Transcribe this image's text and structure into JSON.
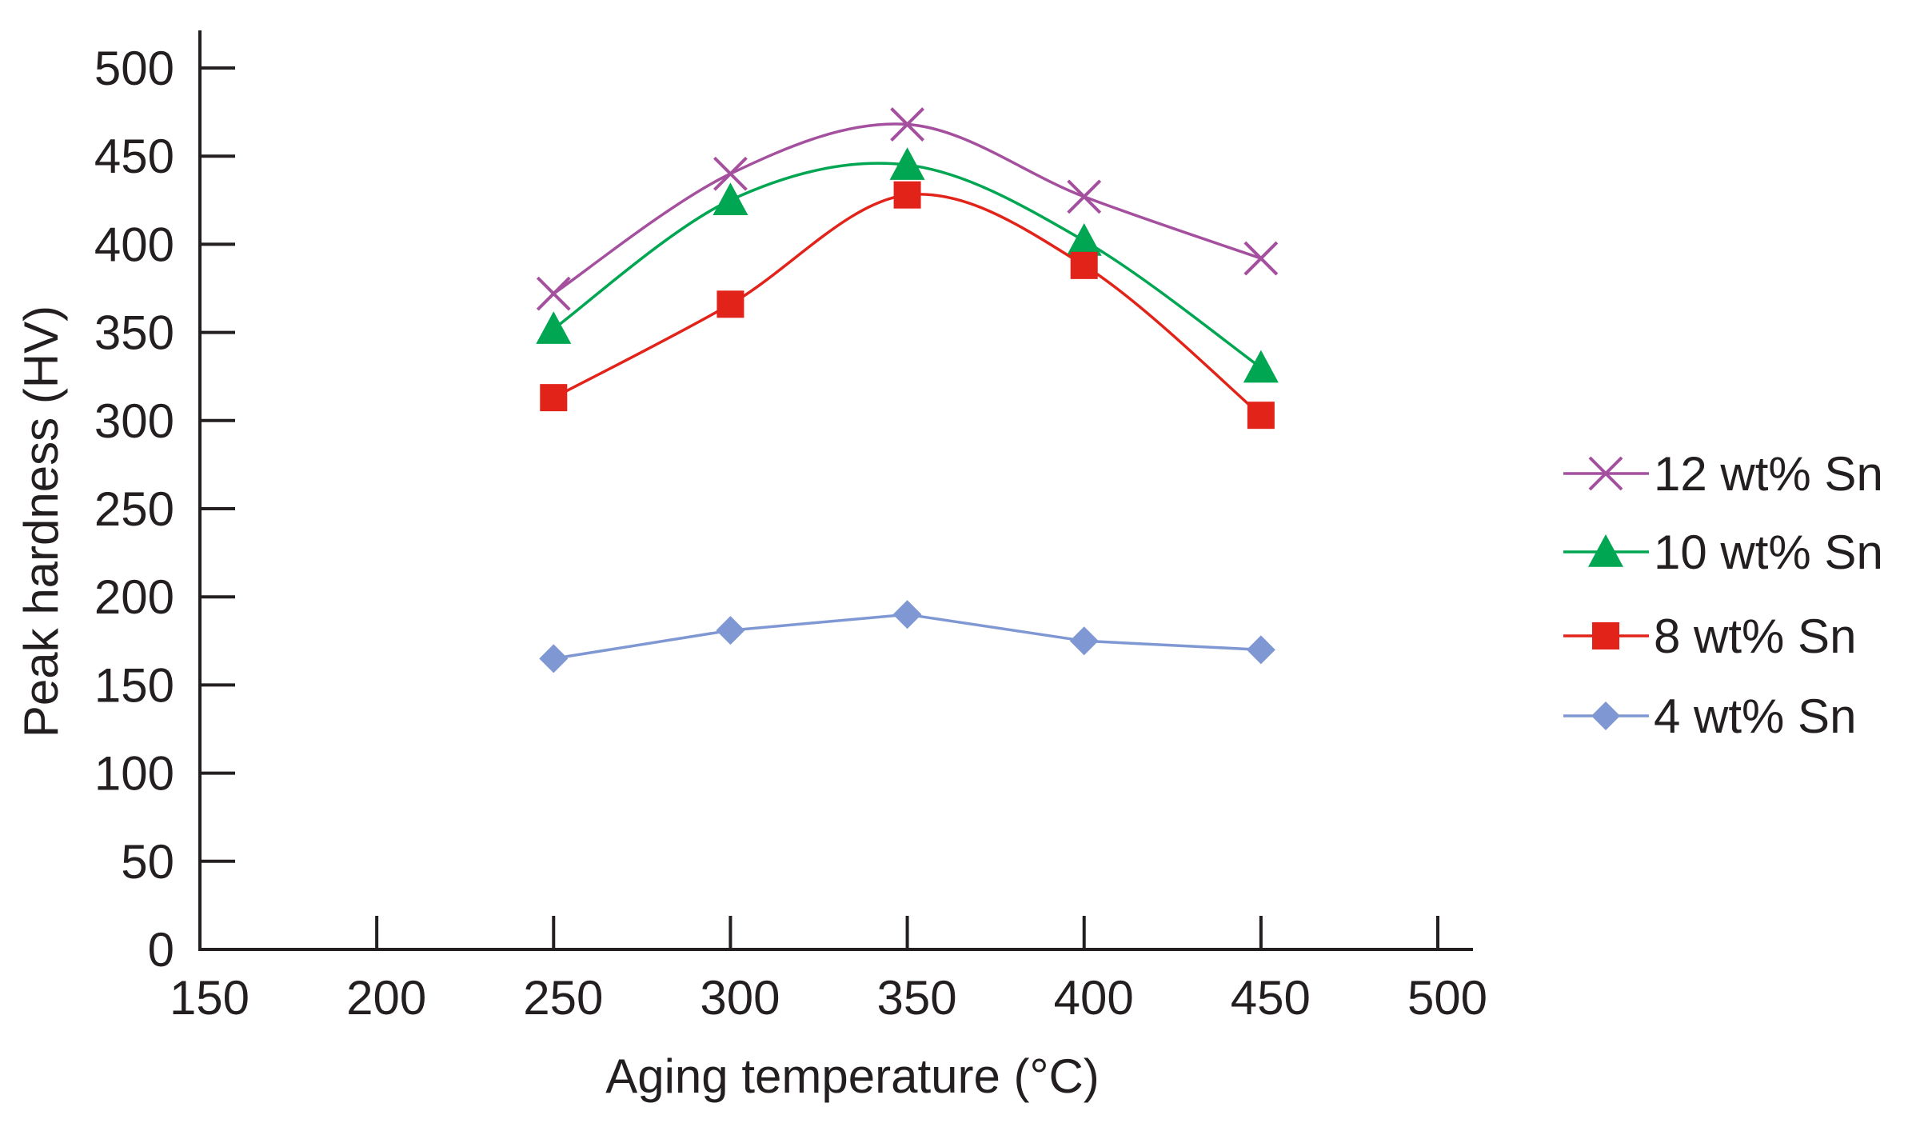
{
  "chart_data": {
    "type": "line",
    "title": "",
    "xlabel": "Aging temperature (°C)",
    "ylabel": "Peak hardness (HV)",
    "xlim": [
      150,
      500
    ],
    "ylim": [
      0,
      500
    ],
    "x_ticks": [
      150,
      200,
      250,
      300,
      350,
      400,
      450,
      500
    ],
    "y_ticks": [
      0,
      50,
      100,
      150,
      200,
      250,
      300,
      350,
      400,
      450,
      500
    ],
    "grid": false,
    "legend_position": "right",
    "x": [
      250,
      300,
      350,
      400,
      450
    ],
    "series": [
      {
        "name": "12 wt% Sn",
        "values": [
          372,
          440,
          468,
          427,
          392
        ],
        "color": "#a4509e",
        "marker": "x",
        "smooth": true
      },
      {
        "name": "10 wt% Sn",
        "values": [
          352,
          425,
          445,
          402,
          330
        ],
        "color": "#00a651",
        "marker": "triangle",
        "smooth": true
      },
      {
        "name": "8 wt% Sn",
        "values": [
          313,
          366,
          428,
          388,
          303
        ],
        "color": "#e2231a",
        "marker": "square",
        "smooth": true
      },
      {
        "name": "4 wt% Sn",
        "values": [
          165,
          181,
          190,
          175,
          170
        ],
        "color": "#7f98d3",
        "marker": "diamond",
        "smooth": false
      }
    ]
  }
}
